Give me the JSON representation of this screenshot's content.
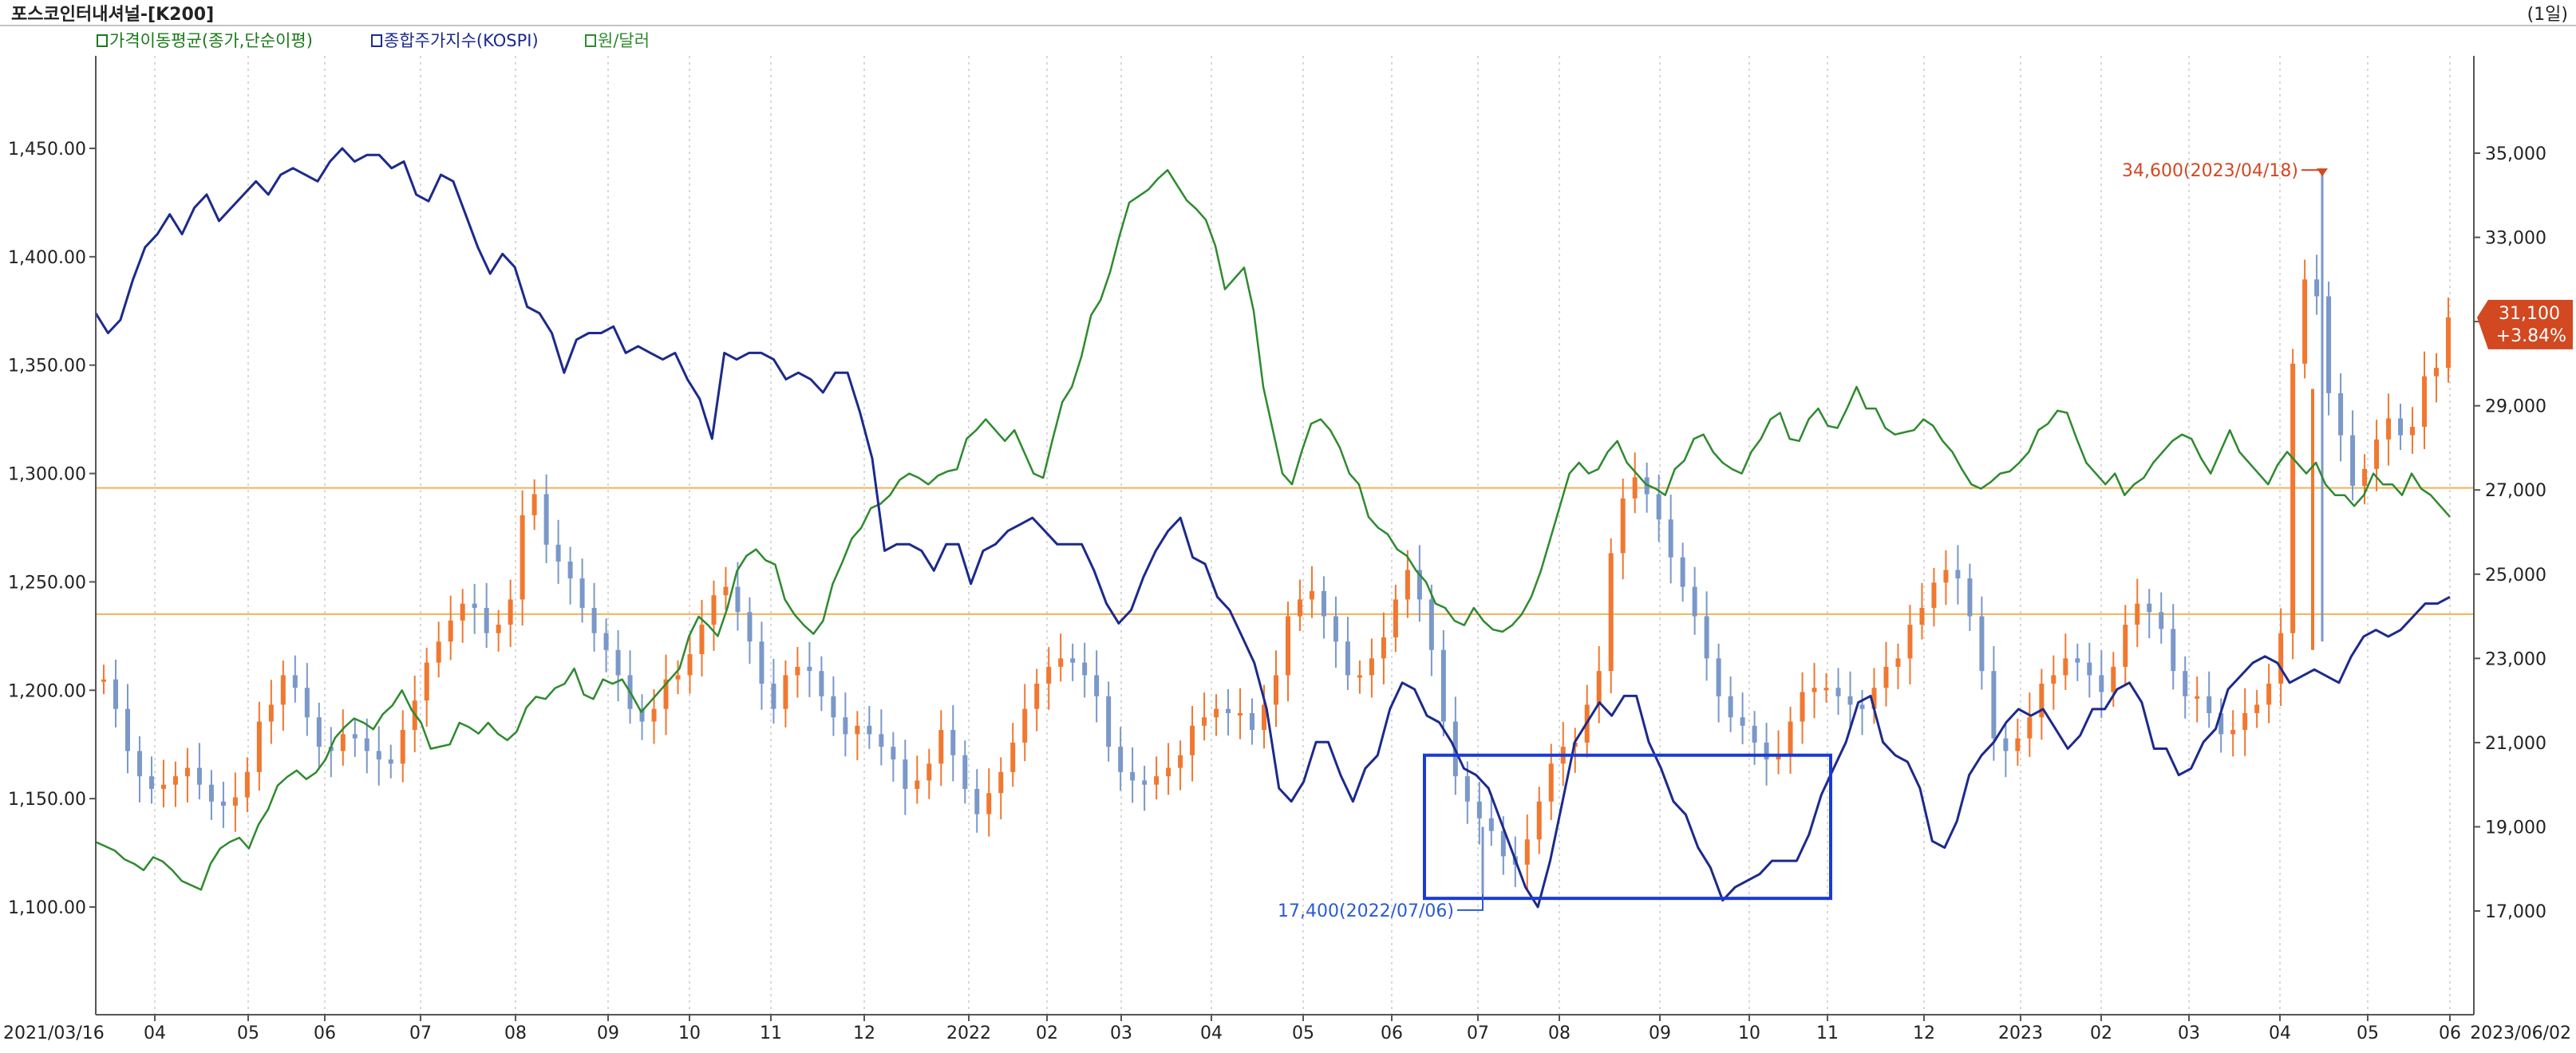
{
  "header": {
    "title": "포스코인터내셔널-[K200]",
    "period": "(1일)"
  },
  "legend": [
    {
      "label": "가격이동평균(종가,단순이평)",
      "color": "#1a7a1a"
    },
    {
      "label": "종합주가지수(KOSPI)",
      "color": "#1c2a8c"
    },
    {
      "label": "원/달러",
      "color": "#2f8a2f"
    }
  ],
  "chart_data": {
    "type": "line",
    "title": "포스코인터내셔널-[K200]",
    "x_start_label": "2021/03/16",
    "x_end_label": "2023/06/02",
    "x_tick_labels": [
      "04",
      "05",
      "06",
      "07",
      "08",
      "09",
      "10",
      "11",
      "12",
      "2022",
      "02",
      "03",
      "04",
      "05",
      "06",
      "07",
      "08",
      "09",
      "10",
      "11",
      "12",
      "2023",
      "02",
      "03",
      "04",
      "05",
      "06"
    ],
    "left_axis": {
      "ticks": [
        "1,450.00",
        "1,400.00",
        "1,350.00",
        "1,300.00",
        "1,250.00",
        "1,200.00",
        "1,150.00",
        "1,100.00"
      ],
      "range": [
        1085,
        1500
      ]
    },
    "right_axis": {
      "ticks": [
        "35,000",
        "33,000",
        "31,000",
        "29,000",
        "27,000",
        "25,000",
        "23,000",
        "21,000",
        "19,000",
        "17,000"
      ],
      "range": [
        16000,
        37000
      ]
    },
    "horizontal_lines_right_axis": [
      27050,
      24050
    ],
    "price_series": {
      "name": "포스코인터내셔널",
      "values": [
        22500,
        21800,
        20800,
        20200,
        19900,
        20000,
        20200,
        20400,
        20000,
        19600,
        19500,
        19700,
        20300,
        21500,
        21900,
        22600,
        22300,
        21600,
        20900,
        20800,
        21200,
        21100,
        20800,
        20600,
        20500,
        21300,
        22000,
        22900,
        23400,
        23900,
        24300,
        24200,
        23600,
        23800,
        24400,
        26400,
        26900,
        25700,
        25300,
        24900,
        24200,
        23600,
        23200,
        22600,
        21800,
        21500,
        21800,
        22500,
        22600,
        23100,
        23800,
        24500,
        24700,
        24100,
        23400,
        22400,
        21800,
        22600,
        22800,
        22700,
        22100,
        21600,
        21200,
        21400,
        21200,
        20900,
        20600,
        19900,
        20100,
        20500,
        21300,
        20700,
        19900,
        19300,
        19800,
        20300,
        21000,
        21800,
        22400,
        22800,
        23000,
        22900,
        22600,
        22100,
        20900,
        20300,
        20100,
        20000,
        20200,
        20400,
        20700,
        21400,
        21600,
        21800,
        21700,
        21700,
        21300,
        21900,
        22600,
        24000,
        24400,
        24600,
        24000,
        23400,
        22600,
        22600,
        23000,
        23500,
        24400,
        25100,
        24400,
        23200,
        21500,
        20200,
        19600,
        19200,
        18900,
        18300,
        18100,
        18700,
        19600,
        20500,
        20900,
        21000,
        21900,
        22700,
        25500,
        26800,
        27300,
        26900,
        26300,
        25400,
        24700,
        24000,
        23000,
        22100,
        21600,
        21400,
        21000,
        20600,
        20700,
        21500,
        22200,
        22300,
        22300,
        22100,
        21900,
        21800,
        22300,
        22800,
        23000,
        23800,
        24200,
        24800,
        25100,
        24900,
        24000,
        22700,
        21100,
        20800,
        21100,
        21600,
        22400,
        22600,
        23000,
        22900,
        22600,
        22200,
        22800,
        23800,
        24300,
        24100,
        23700,
        22700,
        22100,
        22100,
        21700,
        21200,
        21300,
        21700,
        21900,
        22400,
        23600,
        30000,
        32000,
        31600,
        29300,
        28300,
        27100,
        27500,
        28200,
        28700,
        28300,
        28500,
        29700,
        29900,
        31100
      ]
    },
    "kospi_series": {
      "name": "종합주가지수(KOSPI)",
      "values": [
        3050,
        3020,
        3040,
        3100,
        3150,
        3170,
        3200,
        3170,
        3210,
        3230,
        3190,
        3210,
        3230,
        3250,
        3230,
        3260,
        3270,
        3260,
        3250,
        3280,
        3300,
        3280,
        3290,
        3290,
        3270,
        3280,
        3230,
        3220,
        3260,
        3250,
        3200,
        3150,
        3110,
        3140,
        3120,
        3060,
        3050,
        3020,
        2960,
        3010,
        3020,
        3020,
        3030,
        2990,
        3000,
        2990,
        2980,
        2990,
        2950,
        2920,
        2860,
        2990,
        2980,
        2990,
        2990,
        2980,
        2950,
        2960,
        2950,
        2930,
        2960,
        2960,
        2900,
        2830,
        2690,
        2700,
        2700,
        2690,
        2660,
        2700,
        2700,
        2640,
        2690,
        2700,
        2720,
        2730,
        2740,
        2720,
        2700,
        2700,
        2700,
        2660,
        2610,
        2580,
        2600,
        2650,
        2690,
        2720,
        2740,
        2680,
        2670,
        2620,
        2600,
        2560,
        2520,
        2450,
        2330,
        2310,
        2340,
        2400,
        2400,
        2350,
        2310,
        2360,
        2380,
        2450,
        2490,
        2480,
        2440,
        2430,
        2400,
        2360,
        2350,
        2330,
        2280,
        2230,
        2180,
        2150,
        2220,
        2310,
        2400,
        2430,
        2460,
        2440,
        2470,
        2470,
        2400,
        2360,
        2310,
        2290,
        2240,
        2210,
        2160,
        2180,
        2190,
        2200,
        2220,
        2220,
        2220,
        2260,
        2320,
        2360,
        2400,
        2460,
        2470,
        2400,
        2380,
        2370,
        2330,
        2250,
        2240,
        2280,
        2350,
        2380,
        2400,
        2430,
        2450,
        2440,
        2450,
        2420,
        2390,
        2410,
        2450,
        2450,
        2480,
        2490,
        2460,
        2390,
        2390,
        2350,
        2360,
        2400,
        2420,
        2480,
        2500,
        2520,
        2530,
        2520,
        2490,
        2500,
        2510,
        2500,
        2490,
        2530,
        2560,
        2570,
        2560,
        2570,
        2590,
        2610,
        2610,
        2620
      ]
    },
    "usd_krw_series": {
      "name": "원/달러",
      "values": [
        1130,
        1128,
        1126,
        1122,
        1120,
        1117,
        1123,
        1121,
        1117,
        1112,
        1110,
        1108,
        1120,
        1127,
        1130,
        1132,
        1127,
        1138,
        1145,
        1156,
        1160,
        1163,
        1159,
        1162,
        1168,
        1178,
        1183,
        1187,
        1185,
        1182,
        1189,
        1193,
        1200,
        1191,
        1185,
        1173,
        1174,
        1175,
        1185,
        1183,
        1180,
        1185,
        1180,
        1177,
        1181,
        1192,
        1197,
        1196,
        1201,
        1203,
        1210,
        1198,
        1196,
        1205,
        1203,
        1205,
        1198,
        1190,
        1195,
        1200,
        1205,
        1210,
        1225,
        1234,
        1230,
        1225,
        1238,
        1255,
        1262,
        1265,
        1260,
        1258,
        1242,
        1235,
        1230,
        1226,
        1232,
        1249,
        1259,
        1270,
        1275,
        1284,
        1286,
        1290,
        1297,
        1300,
        1298,
        1295,
        1299,
        1301,
        1302,
        1316,
        1320,
        1325,
        1320,
        1315,
        1320,
        1310,
        1300,
        1298,
        1316,
        1333,
        1340,
        1354,
        1373,
        1380,
        1393,
        1410,
        1425,
        1428,
        1431,
        1436,
        1440,
        1433,
        1426,
        1422,
        1417,
        1405,
        1385,
        1390,
        1395,
        1375,
        1340,
        1320,
        1300,
        1295,
        1310,
        1323,
        1325,
        1320,
        1312,
        1300,
        1295,
        1280,
        1275,
        1272,
        1265,
        1262,
        1255,
        1250,
        1240,
        1238,
        1232,
        1230,
        1238,
        1232,
        1228,
        1227,
        1230,
        1235,
        1243,
        1255,
        1270,
        1285,
        1300,
        1305,
        1300,
        1302,
        1310,
        1315,
        1305,
        1300,
        1295,
        1293,
        1290,
        1302,
        1306,
        1316,
        1318,
        1310,
        1305,
        1302,
        1300,
        1310,
        1316,
        1325,
        1328,
        1316,
        1315,
        1325,
        1330,
        1322,
        1321,
        1330,
        1340,
        1330,
        1330,
        1321,
        1318,
        1319,
        1320,
        1325,
        1322,
        1315,
        1310,
        1302,
        1295,
        1293,
        1296,
        1300,
        1301,
        1305,
        1310,
        1320,
        1323,
        1329,
        1328,
        1316,
        1305,
        1300,
        1295,
        1300,
        1290,
        1295,
        1298,
        1305,
        1310,
        1315,
        1318,
        1316,
        1307,
        1300,
        1310,
        1320,
        1310,
        1305,
        1300,
        1295,
        1304,
        1310,
        1305,
        1300,
        1305,
        1295,
        1290,
        1290,
        1285,
        1290,
        1300,
        1295,
        1295,
        1290,
        1300,
        1293,
        1290,
        1285,
        1280
      ]
    },
    "annotations": {
      "high": {
        "label": "34,600(2023/04/18)",
        "value": 34600
      },
      "low": {
        "label": "17,400(2022/07/06)",
        "value": 17400
      },
      "last_price": "31,100",
      "last_change": "+3.84%"
    },
    "highlight_box": {
      "from": "2022/06",
      "to": "2022/11",
      "color": "#1a3ad6"
    },
    "colors": {
      "up_candle": "#f07830",
      "down_candle": "#7a98c8",
      "kospi": "#1c2a8c",
      "usd_krw": "#2f8a2f",
      "hline": "#f2b255",
      "grid_vertical": "#d8d8d8",
      "high_label": "#d24820",
      "low_label": "#2a5bd7",
      "last_badge": "#d24820"
    }
  }
}
